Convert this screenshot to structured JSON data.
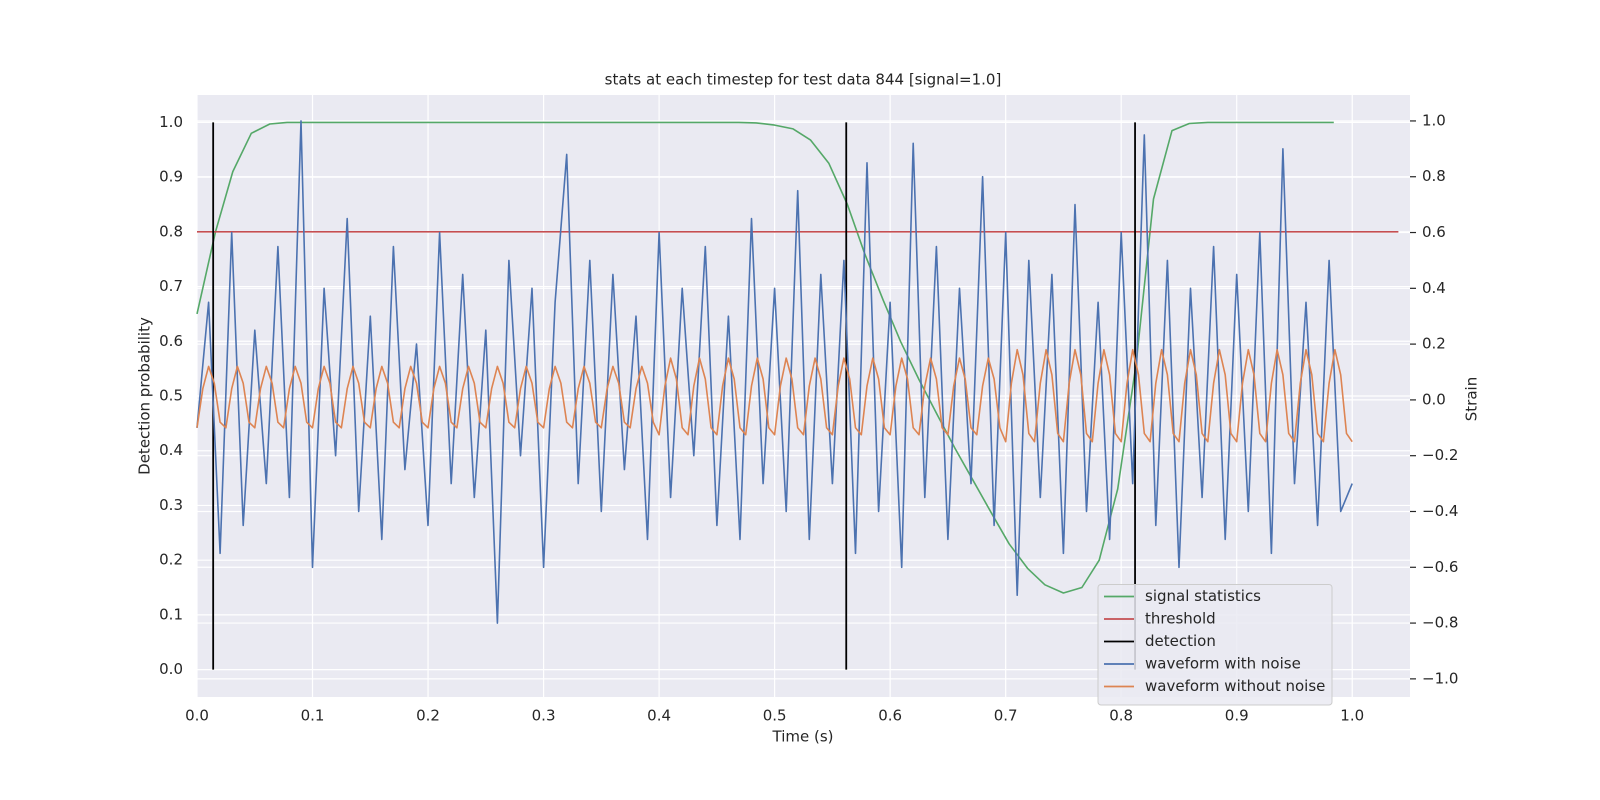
{
  "chart_data": {
    "type": "line",
    "title": "stats at each timestep for test data 844 [signal=1.0]",
    "xlabel": "Time (s)",
    "ylabel": "Detection probability",
    "y2label": "Strain",
    "xlim": [
      0,
      1.05
    ],
    "ylim": [
      -0.05,
      1.05
    ],
    "y2lim": [
      -1.065,
      1.093
    ],
    "xticks": [
      {
        "value": 0,
        "label": "0.0"
      },
      0.1,
      0.2,
      0.3,
      0.4,
      0.5,
      0.6,
      0.7,
      0.8,
      0.9,
      {
        "value": 1,
        "label": "1.0"
      }
    ],
    "yticks": [
      {
        "value": 0,
        "label": "0.0"
      },
      0.1,
      0.2,
      0.3,
      0.4,
      0.5,
      0.6,
      0.7,
      0.8,
      0.9,
      {
        "value": 1,
        "label": "1.0"
      }
    ],
    "y2ticks": [
      {
        "value": -1,
        "label": "−1.0"
      },
      {
        "value": -0.8,
        "label": "−0.8"
      },
      {
        "value": -0.6,
        "label": "−0.6"
      },
      {
        "value": -0.4,
        "label": "−0.4"
      },
      {
        "value": -0.2,
        "label": "−0.2"
      },
      {
        "value": 0,
        "label": "0.0"
      },
      0.2,
      0.4,
      0.6,
      0.8,
      {
        "value": 1,
        "label": "1.0"
      }
    ],
    "grid": true,
    "legend": "lower right",
    "series": [
      {
        "name": "signal statistics",
        "color": "#55a868",
        "x": [
          0,
          0.016,
          0.031,
          0.047,
          0.063,
          0.078,
          0.469,
          0.484,
          0.5,
          0.516,
          0.531,
          0.547,
          0.563,
          0.578,
          0.594,
          0.609,
          0.625,
          0.641,
          0.656,
          0.672,
          0.688,
          0.703,
          0.719,
          0.734,
          0.75,
          0.766,
          0.781,
          0.797,
          0.813,
          0.828,
          0.844,
          0.859,
          0.875,
          0.984
        ],
        "values": [
          0.65,
          0.8,
          0.91,
          0.98,
          0.997,
          1.0,
          1.0,
          0.999,
          0.995,
          0.988,
          0.968,
          0.925,
          0.85,
          0.76,
          0.675,
          0.6,
          0.53,
          0.465,
          0.405,
          0.345,
          0.285,
          0.23,
          0.185,
          0.155,
          0.14,
          0.15,
          0.2,
          0.33,
          0.56,
          0.86,
          0.985,
          0.998,
          1.0,
          1.0
        ]
      },
      {
        "name": "threshold",
        "color": "#c44e52",
        "x": [
          0,
          1.04
        ],
        "values": [
          0.8,
          0.8
        ]
      },
      {
        "name": "detection",
        "color": "#000000",
        "kind": "vlines",
        "x": [
          0.014,
          0.562,
          0.812
        ],
        "ymin": 0,
        "ymax": 1
      },
      {
        "name": "waveform with noise",
        "color": "#4c72b0",
        "axis": "y2",
        "x": [
          0,
          0.01,
          0.02,
          0.03,
          0.04,
          0.05,
          0.06,
          0.07,
          0.08,
          0.09,
          0.1,
          0.11,
          0.12,
          0.13,
          0.14,
          0.15,
          0.16,
          0.17,
          0.18,
          0.19,
          0.2,
          0.21,
          0.22,
          0.23,
          0.24,
          0.25,
          0.26,
          0.27,
          0.28,
          0.29,
          0.3,
          0.31,
          0.32,
          0.33,
          0.34,
          0.35,
          0.36,
          0.37,
          0.38,
          0.39,
          0.4,
          0.41,
          0.42,
          0.43,
          0.44,
          0.45,
          0.46,
          0.47,
          0.48,
          0.49,
          0.5,
          0.51,
          0.52,
          0.53,
          0.54,
          0.55,
          0.56,
          0.57,
          0.58,
          0.59,
          0.6,
          0.61,
          0.62,
          0.63,
          0.64,
          0.65,
          0.66,
          0.67,
          0.68,
          0.69,
          0.7,
          0.71,
          0.72,
          0.73,
          0.74,
          0.75,
          0.76,
          0.77,
          0.78,
          0.79,
          0.8,
          0.81,
          0.82,
          0.83,
          0.84,
          0.85,
          0.86,
          0.87,
          0.88,
          0.89,
          0.9,
          0.91,
          0.92,
          0.93,
          0.94,
          0.95,
          0.96,
          0.97,
          0.98,
          0.99,
          1.0
        ],
        "values": [
          -0.1,
          0.35,
          -0.55,
          0.6,
          -0.45,
          0.25,
          -0.3,
          0.55,
          -0.35,
          1.0,
          -0.6,
          0.4,
          -0.2,
          0.65,
          -0.4,
          0.3,
          -0.5,
          0.55,
          -0.25,
          0.2,
          -0.45,
          0.6,
          -0.3,
          0.45,
          -0.35,
          0.25,
          -0.8,
          0.5,
          -0.2,
          0.4,
          -0.6,
          0.35,
          0.88,
          -0.3,
          0.5,
          -0.4,
          0.45,
          -0.25,
          0.3,
          -0.5,
          0.6,
          -0.35,
          0.4,
          -0.2,
          0.55,
          -0.45,
          0.3,
          -0.5,
          0.65,
          -0.3,
          0.4,
          -0.4,
          0.75,
          -0.5,
          0.45,
          -0.3,
          0.5,
          -0.55,
          0.85,
          -0.4,
          0.35,
          -0.6,
          0.92,
          -0.35,
          0.55,
          -0.5,
          0.4,
          -0.3,
          0.8,
          -0.45,
          0.6,
          -0.7,
          0.5,
          -0.35,
          0.45,
          -0.55,
          0.7,
          -0.4,
          0.35,
          -0.5,
          0.6,
          -0.3,
          0.95,
          -0.45,
          0.5,
          -0.6,
          0.4,
          -0.35,
          0.55,
          -0.5,
          0.45,
          -0.4,
          0.6,
          -0.55,
          0.9,
          -0.3,
          0.35,
          -0.45,
          0.5,
          -0.4,
          -0.3
        ]
      },
      {
        "name": "waveform without noise",
        "color": "#dd8452",
        "axis": "y2",
        "x": [
          0,
          0.005,
          0.01,
          0.015,
          0.02,
          0.025,
          0.03,
          0.035,
          0.04,
          0.045,
          0.05,
          0.055,
          0.06,
          0.065,
          0.07,
          0.075,
          0.08,
          0.085,
          0.09,
          0.095,
          0.1,
          0.105,
          0.11,
          0.115,
          0.12,
          0.125,
          0.13,
          0.135,
          0.14,
          0.145,
          0.15,
          0.155,
          0.16,
          0.165,
          0.17,
          0.175,
          0.18,
          0.185,
          0.19,
          0.195,
          0.2,
          0.205,
          0.21,
          0.215,
          0.22,
          0.225,
          0.23,
          0.235,
          0.24,
          0.245,
          0.25,
          0.255,
          0.26,
          0.265,
          0.27,
          0.275,
          0.28,
          0.285,
          0.29,
          0.295,
          0.3,
          0.305,
          0.31,
          0.315,
          0.32,
          0.325,
          0.33,
          0.335,
          0.34,
          0.345,
          0.35,
          0.355,
          0.36,
          0.365,
          0.37,
          0.375,
          0.38,
          0.385,
          0.39,
          0.395,
          0.4,
          0.405,
          0.41,
          0.415,
          0.42,
          0.425,
          0.43,
          0.435,
          0.44,
          0.445,
          0.45,
          0.455,
          0.46,
          0.465,
          0.47,
          0.475,
          0.48,
          0.485,
          0.49,
          0.495,
          0.5,
          0.505,
          0.51,
          0.515,
          0.52,
          0.525,
          0.53,
          0.535,
          0.54,
          0.545,
          0.55,
          0.555,
          0.56,
          0.565,
          0.57,
          0.575,
          0.58,
          0.585,
          0.59,
          0.595,
          0.6,
          0.605,
          0.61,
          0.615,
          0.62,
          0.625,
          0.63,
          0.635,
          0.64,
          0.645,
          0.65,
          0.655,
          0.66,
          0.665,
          0.67,
          0.675,
          0.68,
          0.685,
          0.69,
          0.695,
          0.7,
          0.705,
          0.71,
          0.715,
          0.72,
          0.725,
          0.73,
          0.735,
          0.74,
          0.745,
          0.75,
          0.755,
          0.76,
          0.765,
          0.77,
          0.775,
          0.78,
          0.785,
          0.79,
          0.795,
          0.8,
          0.805,
          0.81,
          0.815,
          0.82,
          0.825,
          0.83,
          0.835,
          0.84,
          0.845,
          0.85,
          0.855,
          0.86,
          0.865,
          0.87,
          0.875,
          0.88,
          0.885,
          0.89,
          0.895,
          0.9,
          0.905,
          0.91,
          0.915,
          0.92,
          0.925,
          0.93,
          0.935,
          0.94,
          0.945,
          0.95,
          0.955,
          0.96,
          0.965,
          0.97,
          0.975,
          0.98,
          0.985,
          0.99,
          0.995,
          1.0
        ],
        "values": [
          -0.1,
          0.04,
          0.12,
          0.06,
          -0.08,
          -0.1,
          0.04,
          0.12,
          0.06,
          -0.08,
          -0.1,
          0.04,
          0.12,
          0.06,
          -0.08,
          -0.1,
          0.04,
          0.12,
          0.06,
          -0.08,
          -0.1,
          0.04,
          0.12,
          0.06,
          -0.08,
          -0.1,
          0.04,
          0.12,
          0.06,
          -0.08,
          -0.1,
          0.04,
          0.12,
          0.06,
          -0.08,
          -0.1,
          0.04,
          0.12,
          0.06,
          -0.08,
          -0.1,
          0.04,
          0.12,
          0.06,
          -0.08,
          -0.1,
          0.04,
          0.12,
          0.06,
          -0.08,
          -0.1,
          0.04,
          0.12,
          0.06,
          -0.08,
          -0.1,
          0.04,
          0.12,
          0.06,
          -0.08,
          -0.1,
          0.04,
          0.12,
          0.06,
          -0.08,
          -0.1,
          0.04,
          0.12,
          0.06,
          -0.08,
          -0.1,
          0.04,
          0.12,
          0.06,
          -0.08,
          -0.1,
          0.04,
          0.12,
          0.06,
          -0.08,
          -0.125,
          0.05,
          0.15,
          0.075,
          -0.1,
          -0.125,
          0.05,
          0.15,
          0.075,
          -0.1,
          -0.125,
          0.05,
          0.15,
          0.075,
          -0.1,
          -0.125,
          0.05,
          0.15,
          0.075,
          -0.1,
          -0.125,
          0.05,
          0.15,
          0.075,
          -0.1,
          -0.125,
          0.05,
          0.15,
          0.075,
          -0.1,
          -0.125,
          0.05,
          0.15,
          0.075,
          -0.1,
          -0.125,
          0.05,
          0.15,
          0.075,
          -0.1,
          -0.125,
          0.05,
          0.15,
          0.075,
          -0.1,
          -0.125,
          0.05,
          0.15,
          0.075,
          -0.1,
          -0.125,
          0.05,
          0.15,
          0.075,
          -0.1,
          -0.125,
          0.05,
          0.15,
          0.075,
          -0.1,
          -0.15,
          0.06,
          0.18,
          0.09,
          -0.12,
          -0.15,
          0.06,
          0.18,
          0.09,
          -0.12,
          -0.15,
          0.06,
          0.18,
          0.09,
          -0.12,
          -0.15,
          0.06,
          0.18,
          0.09,
          -0.12,
          -0.15,
          0.06,
          0.18,
          0.09,
          -0.12,
          -0.15,
          0.06,
          0.18,
          0.09,
          -0.12,
          -0.15,
          0.06,
          0.18,
          0.09,
          -0.12,
          -0.15,
          0.06,
          0.18,
          0.09,
          -0.12,
          -0.15,
          0.06,
          0.18,
          0.09,
          -0.12,
          -0.15,
          0.06,
          0.18,
          0.09,
          -0.12,
          -0.15,
          0.06,
          0.18,
          0.09,
          -0.12,
          -0.15,
          0.06,
          0.18,
          0.09,
          -0.12,
          -0.15
        ]
      }
    ]
  }
}
